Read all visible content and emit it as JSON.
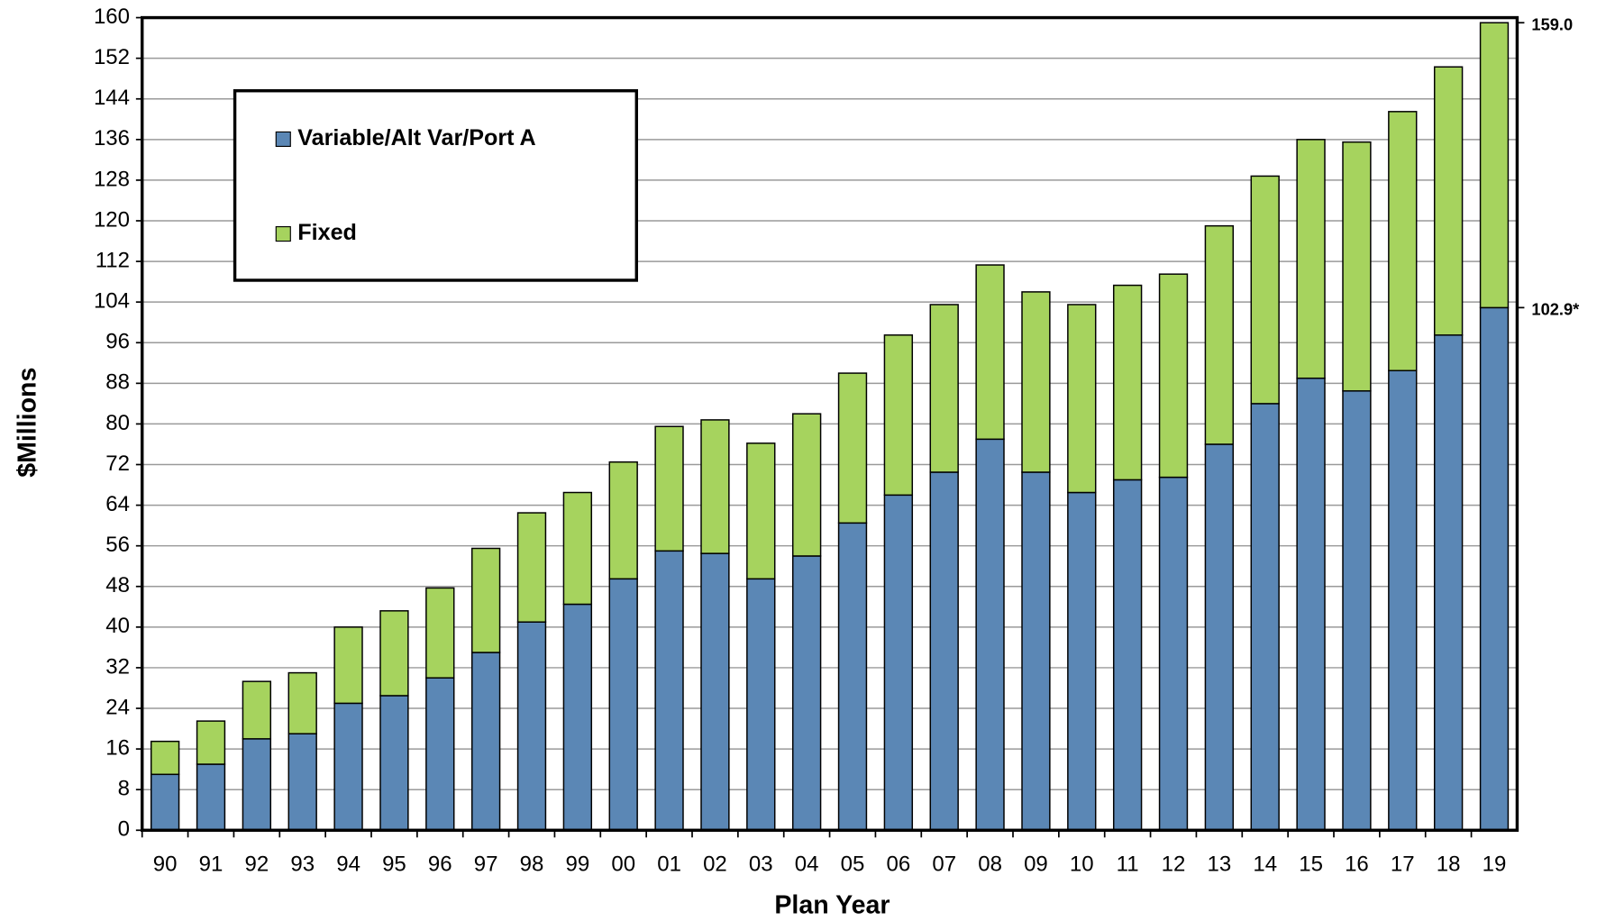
{
  "chart_data": {
    "type": "stacked-bar",
    "x_label": "Plan Year",
    "y_label": "$Millions",
    "categories": [
      "90",
      "91",
      "92",
      "93",
      "94",
      "95",
      "96",
      "97",
      "98",
      "99",
      "00",
      "01",
      "02",
      "03",
      "04",
      "05",
      "06",
      "07",
      "08",
      "09",
      "10",
      "11",
      "12",
      "13",
      "14",
      "15",
      "16",
      "17",
      "18",
      "19"
    ],
    "series": [
      {
        "name": "Variable/Alt Var/Port A",
        "color": "#5b87b5",
        "values": [
          11,
          13,
          18,
          19,
          25,
          26.5,
          30,
          35,
          41,
          44.5,
          49.5,
          55,
          54.5,
          49.5,
          54,
          60.5,
          66,
          70.5,
          77,
          70.5,
          66.5,
          69,
          69.5,
          76,
          84,
          89,
          86.5,
          90.5,
          97.5,
          102.9
        ]
      },
      {
        "name": "Fixed",
        "color": "#a6d35e",
        "values": [
          6.5,
          8.5,
          11.3,
          12,
          15,
          16.7,
          17.7,
          20.5,
          21.5,
          22,
          23,
          24.5,
          26.3,
          26.7,
          28,
          29.5,
          31.5,
          33,
          34.3,
          35.5,
          37,
          38.3,
          40,
          43,
          44.8,
          47,
          49,
          51,
          52.8,
          56.1
        ]
      }
    ],
    "annotations": [
      {
        "text": "159.0",
        "value": 159.0
      },
      {
        "text": "102.9*",
        "value": 102.9
      }
    ],
    "ylim": [
      0,
      160
    ],
    "yticks": [
      0,
      8,
      16,
      24,
      32,
      40,
      48,
      56,
      64,
      72,
      80,
      88,
      96,
      104,
      112,
      120,
      128,
      136,
      144,
      152,
      160
    ],
    "grid": true,
    "legend": "upper-left"
  }
}
